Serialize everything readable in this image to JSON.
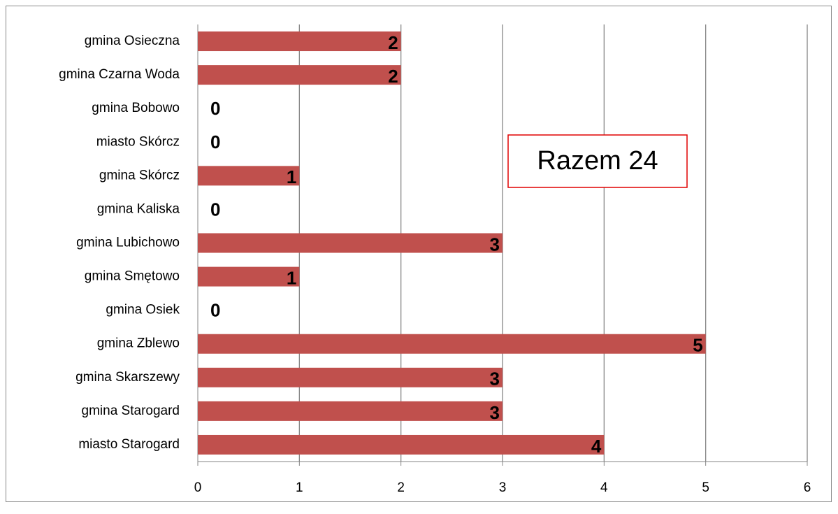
{
  "chart_data": {
    "type": "bar",
    "orientation": "horizontal",
    "categories": [
      "gmina Osieczna",
      "gmina Czarna Woda",
      "gmina Bobowo",
      "miasto Skórcz",
      "gmina Skórcz",
      "gmina Kaliska",
      "gmina Lubichowo",
      "gmina Smętowo",
      "gmina Osiek",
      "gmina Zblewo",
      "gmina Skarszewy",
      "gmina Starogard",
      "miasto Starogard"
    ],
    "values": [
      2,
      2,
      0,
      0,
      1,
      0,
      3,
      1,
      0,
      5,
      3,
      3,
      4
    ],
    "color": "#c0504d",
    "xlim": [
      0,
      6
    ],
    "xticks": [
      0,
      1,
      2,
      3,
      4,
      5,
      6
    ],
    "grid": true,
    "annotation": "Razem 24"
  }
}
